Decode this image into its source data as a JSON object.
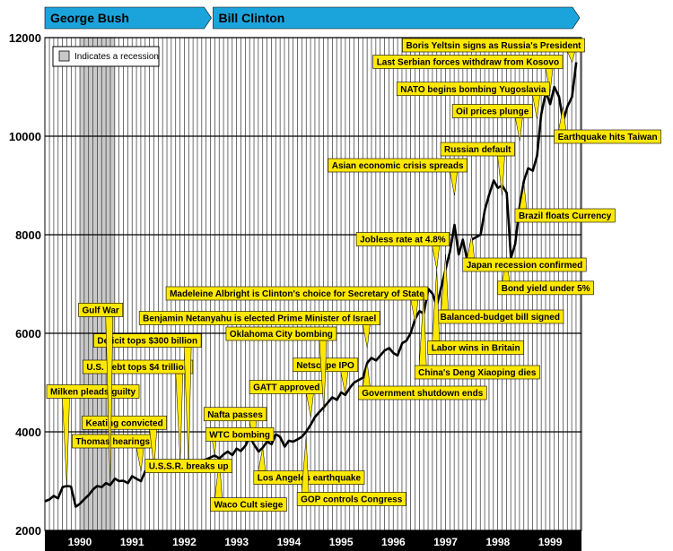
{
  "colors": {
    "era_bar": "#1ba4dc",
    "callout": "#ffe800",
    "recession": "#c9c9c9",
    "line": "#000000",
    "axis_bar": "#000000"
  },
  "presidents": [
    {
      "name": "George Bush",
      "start": 1989.83,
      "end": 1993.05
    },
    {
      "name": "Bill Clinton",
      "start": 1993.05,
      "end": 2000.1
    }
  ],
  "legend": {
    "label": "Indicates a recession"
  },
  "chart_data": {
    "type": "line",
    "ylim": [
      2000,
      12000
    ],
    "yticks": [
      2000,
      4000,
      6000,
      8000,
      10000,
      12000
    ],
    "xlim": [
      1989.83,
      2000.1
    ],
    "xticks": [
      {
        "label": "1990",
        "value": 1990.5
      },
      {
        "label": "1991",
        "value": 1991.5
      },
      {
        "label": "1992",
        "value": 1992.5
      },
      {
        "label": "1993",
        "value": 1993.5
      },
      {
        "label": "1994",
        "value": 1994.5
      },
      {
        "label": "1995",
        "value": 1995.5
      },
      {
        "label": "1996",
        "value": 1996.5
      },
      {
        "label": "1997",
        "value": 1997.5
      },
      {
        "label": "1998",
        "value": 1998.5
      },
      {
        "label": "1999",
        "value": 1999.5
      }
    ],
    "grid_x_start": 1989.917,
    "grid_x_step": 0.0833,
    "recession": [
      1990.5,
      1991.17
    ],
    "series": [
      {
        "x": [
          1989.83,
          1989.92,
          1990.0,
          1990.08,
          1990.17,
          1990.25,
          1990.33,
          1990.42,
          1990.5,
          1990.58,
          1990.67,
          1990.75,
          1990.83,
          1990.92,
          1991.0,
          1991.08,
          1991.17,
          1991.25,
          1991.33,
          1991.42,
          1991.5,
          1991.58,
          1991.67,
          1991.75,
          1991.83,
          1991.92,
          1992.0,
          1992.08,
          1992.17,
          1992.25,
          1992.33,
          1992.42,
          1992.5,
          1992.58,
          1992.67,
          1992.75,
          1992.83,
          1992.92,
          1993.0,
          1993.08,
          1993.17,
          1993.25,
          1993.33,
          1993.42,
          1993.5,
          1993.58,
          1993.67,
          1993.75,
          1993.83,
          1993.92,
          1994.0,
          1994.08,
          1994.17,
          1994.25,
          1994.33,
          1994.42,
          1994.5,
          1994.58,
          1994.67,
          1994.75,
          1994.83,
          1994.92,
          1995.0,
          1995.08,
          1995.17,
          1995.25,
          1995.33,
          1995.42,
          1995.5,
          1995.58,
          1995.67,
          1995.75,
          1995.83,
          1995.92,
          1996.0,
          1996.08,
          1996.17,
          1996.25,
          1996.33,
          1996.42,
          1996.5,
          1996.58,
          1996.67,
          1996.75,
          1996.83,
          1996.92,
          1997.0,
          1997.08,
          1997.17,
          1997.25,
          1997.33,
          1997.42,
          1997.5,
          1997.58,
          1997.67,
          1997.75,
          1997.83,
          1997.92,
          1998.0,
          1998.08,
          1998.17,
          1998.25,
          1998.33,
          1998.42,
          1998.5,
          1998.58,
          1998.67,
          1998.75,
          1998.83,
          1998.92,
          1999.0,
          1999.08,
          1999.17,
          1999.25,
          1999.33,
          1999.42,
          1999.5,
          1999.58,
          1999.67,
          1999.75,
          1999.83,
          1999.92,
          2000.0
        ],
        "values": [
          2590,
          2630,
          2700,
          2650,
          2880,
          2900,
          2890,
          2480,
          2540,
          2630,
          2720,
          2830,
          2900,
          2880,
          2960,
          2920,
          3050,
          3000,
          3010,
          2960,
          3100,
          3050,
          3000,
          3200,
          3250,
          3280,
          3250,
          3300,
          3380,
          3300,
          3350,
          3400,
          3320,
          3280,
          3260,
          3300,
          3420,
          3440,
          3480,
          3520,
          3460,
          3540,
          3600,
          3530,
          3660,
          3610,
          3720,
          3900,
          3750,
          3600,
          3680,
          3800,
          3750,
          3950,
          3900,
          3700,
          3820,
          3800,
          3850,
          3900,
          4000,
          4150,
          4300,
          4400,
          4500,
          4600,
          4700,
          4650,
          4800,
          4750,
          4900,
          5000,
          5050,
          5100,
          5400,
          5500,
          5450,
          5550,
          5650,
          5700,
          5600,
          5550,
          5800,
          5850,
          6000,
          6300,
          6450,
          6400,
          6900,
          6800,
          6550,
          6950,
          7300,
          7650,
          8200,
          7600,
          7900,
          7450,
          7900,
          7950,
          8000,
          8500,
          8800,
          9100,
          8950,
          9000,
          8850,
          7530,
          7810,
          8600,
          9100,
          9350,
          9300,
          9600,
          10450,
          10900,
          10650,
          11000,
          10800,
          10300,
          10600,
          10800,
          11500
        ]
      }
    ],
    "annotations": [
      {
        "text": "Boris Yeltsin signs as Russia's President",
        "x": 1999.92,
        "y": 11500,
        "dir": "above"
      },
      {
        "text": "Last Serbian forces withdraw from Kosovo",
        "x": 1999.5,
        "y": 10900,
        "dir": "above"
      },
      {
        "text": "NATO begins bombing Yugoslavia",
        "x": 1999.25,
        "y": 10350,
        "dir": "above"
      },
      {
        "text": "Oil prices plunge",
        "x": 1998.92,
        "y": 9900,
        "dir": "above"
      },
      {
        "text": "Asian economic crisis spreads",
        "x": 1997.67,
        "y": 8800,
        "dir": "above"
      },
      {
        "text": "Earthquake hits Taiwan",
        "x": 1999.75,
        "y": 10600,
        "dir": "below"
      },
      {
        "text": "Russian default",
        "x": 1998.58,
        "y": 8800,
        "dir": "above"
      },
      {
        "text": "Jobless rate at 4.8%",
        "x": 1997.33,
        "y": 7300,
        "dir": "above"
      },
      {
        "text": "Madeleine Albright is Clinton's choice for Secretary of State",
        "x": 1996.92,
        "y": 6200,
        "dir": "above"
      },
      {
        "text": "Brazil floats Currency",
        "x": 1999.0,
        "y": 9000,
        "dir": "below"
      },
      {
        "text": "Bond yield under 5%",
        "x": 1998.67,
        "y": 7530,
        "dir": "below"
      },
      {
        "text": "Balanced-budget bill signed",
        "x": 1997.5,
        "y": 7600,
        "dir": "below"
      },
      {
        "text": "Benjamin Netanyahu is elected Prime Minister of Israel",
        "x": 1996.0,
        "y": 5700,
        "dir": "above"
      },
      {
        "text": "Labor wins in Britain",
        "x": 1997.33,
        "y": 7300,
        "dir": "below"
      },
      {
        "text": "Thomas hearings",
        "x": 1991.67,
        "y": 3200,
        "dir": "above"
      },
      {
        "text": "Keating convicted",
        "x": 1991.92,
        "y": 3250,
        "dir": "above"
      },
      {
        "text": "GATT approved",
        "x": 1994.92,
        "y": 4300,
        "dir": "above"
      },
      {
        "text": "Japan recession confirmed",
        "x": 1998.0,
        "y": 8000,
        "dir": "below"
      },
      {
        "text": "Netscape IPO",
        "x": 1995.58,
        "y": 4750,
        "dir": "above"
      },
      {
        "text": "Milken pleads guilty",
        "x": 1990.25,
        "y": 2900,
        "dir": "above"
      },
      {
        "text": "Oklahoma City bombing",
        "x": 1995.17,
        "y": 4400,
        "dir": "above"
      },
      {
        "text": "Government shutdown ends",
        "x": 1996.0,
        "y": 5400,
        "dir": "below"
      },
      {
        "text": "U.S. debt tops $4 trillion",
        "x": 1992.42,
        "y": 3400,
        "dir": "above"
      },
      {
        "text": "Nafta passes",
        "x": 1993.83,
        "y": 3750,
        "dir": "above"
      },
      {
        "text": "China's Deng Xiaoping dies",
        "x": 1997.08,
        "y": 6800,
        "dir": "below"
      },
      {
        "text": "Deficit tops $300 billion",
        "x": 1992.58,
        "y": 3280,
        "dir": "above"
      },
      {
        "text": "Gulf War",
        "x": 1991.08,
        "y": 2920,
        "dir": "above"
      },
      {
        "text": "Los Angeles earthquake",
        "x": 1994.0,
        "y": 3680,
        "dir": "below"
      },
      {
        "text": "GOP controls Congress",
        "x": 1994.83,
        "y": 3900,
        "dir": "below"
      },
      {
        "text": "Waco Cult siege",
        "x": 1993.17,
        "y": 3460,
        "dir": "below"
      },
      {
        "text": "U.S.S.R. breaks up",
        "x": 1991.92,
        "y": 3280,
        "dir": "below"
      },
      {
        "text": "WTC bombing",
        "x": 1993.08,
        "y": 3520,
        "dir": "below"
      }
    ]
  }
}
